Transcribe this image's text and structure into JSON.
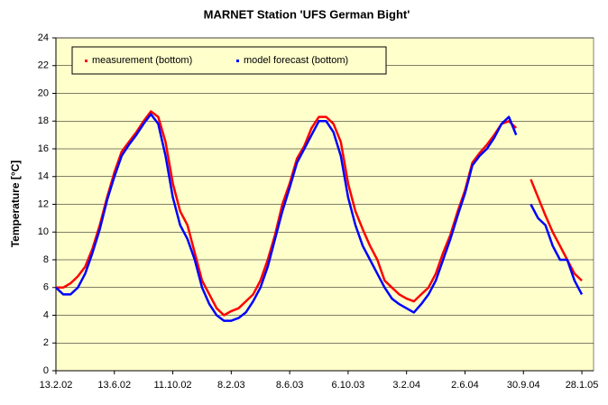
{
  "chart_data": {
    "type": "line",
    "title": "MARNET Station 'UFS German Bight'",
    "y_label": "Temperature  [°C]",
    "xlim": [
      "2002-02-13",
      "2005-02-21"
    ],
    "xticks": [
      {
        "value": "2002-02-13",
        "label": "13.2.02"
      },
      {
        "value": "2002-06-13",
        "label": "13.6.02"
      },
      {
        "value": "2002-10-11",
        "label": "11.10.02"
      },
      {
        "value": "2003-02-08",
        "label": "8.2.03"
      },
      {
        "value": "2003-06-08",
        "label": "8.6.03"
      },
      {
        "value": "2003-10-06",
        "label": "6.10.03"
      },
      {
        "value": "2004-02-03",
        "label": "3.2.04"
      },
      {
        "value": "2004-06-02",
        "label": "2.6.04"
      },
      {
        "value": "2004-09-30",
        "label": "30.9.04"
      },
      {
        "value": "2005-01-28",
        "label": "28.1.05"
      }
    ],
    "ylim": [
      0,
      24
    ],
    "yticks": [
      0,
      2,
      4,
      6,
      8,
      10,
      12,
      14,
      16,
      18,
      20,
      22,
      24
    ],
    "grid": true,
    "legend": "top-left",
    "plot_background": "#ffffcc",
    "x": [
      "2002-02-13",
      "2002-02-28",
      "2002-03-15",
      "2002-03-30",
      "2002-04-14",
      "2002-04-29",
      "2002-05-14",
      "2002-05-29",
      "2002-06-13",
      "2002-06-28",
      "2002-07-13",
      "2002-07-28",
      "2002-08-12",
      "2002-08-27",
      "2002-09-11",
      "2002-09-26",
      "2002-10-11",
      "2002-10-26",
      "2002-11-10",
      "2002-11-25",
      "2002-12-10",
      "2002-12-25",
      "2003-01-09",
      "2003-01-24",
      "2003-02-08",
      "2003-02-23",
      "2003-03-10",
      "2003-03-25",
      "2003-04-09",
      "2003-04-24",
      "2003-05-09",
      "2003-05-24",
      "2003-06-08",
      "2003-06-23",
      "2003-07-08",
      "2003-07-23",
      "2003-08-07",
      "2003-08-22",
      "2003-09-06",
      "2003-09-21",
      "2003-10-06",
      "2003-10-21",
      "2003-11-05",
      "2003-11-20",
      "2003-12-05",
      "2003-12-20",
      "2004-01-04",
      "2004-01-19",
      "2004-02-03",
      "2004-02-18",
      "2004-03-04",
      "2004-03-19",
      "2004-04-03",
      "2004-04-18",
      "2004-05-03",
      "2004-05-18",
      "2004-06-02",
      "2004-06-17",
      "2004-07-02",
      "2004-07-17",
      "2004-08-01",
      "2004-08-16",
      "2004-08-31",
      "2004-09-15",
      "2004-09-30",
      "2004-10-15",
      "2004-10-30",
      "2004-11-14",
      "2004-11-29",
      "2004-12-14",
      "2004-12-29",
      "2005-01-13",
      "2005-01-28",
      "2005-02-12"
    ],
    "series": [
      {
        "name": "measurement (bottom)",
        "color": "#ff0000",
        "values": [
          6.0,
          6.0,
          6.3,
          6.8,
          7.5,
          8.8,
          10.5,
          12.5,
          14.3,
          15.8,
          16.5,
          17.2,
          18.0,
          18.7,
          18.3,
          16.5,
          13.5,
          11.5,
          10.5,
          8.5,
          6.5,
          5.5,
          4.5,
          4.0,
          4.3,
          4.5,
          5.0,
          5.5,
          6.5,
          8.0,
          9.8,
          12.0,
          13.5,
          15.3,
          16.2,
          17.5,
          18.3,
          18.3,
          17.8,
          16.5,
          13.5,
          11.5,
          10.2,
          9.0,
          8.0,
          6.5,
          6.0,
          5.5,
          5.2,
          5.0,
          5.5,
          6.0,
          7.0,
          8.5,
          9.8,
          11.5,
          13.0,
          15.0,
          15.7,
          16.3,
          17.0,
          17.8,
          18.0,
          17.5,
          null,
          13.8,
          12.5,
          11.2,
          10.0,
          9.0,
          8.0,
          7.0,
          6.5,
          null
        ]
      },
      {
        "name": "model forecast (bottom)",
        "color": "#0000ff",
        "values": [
          6.0,
          5.5,
          5.5,
          6.0,
          7.0,
          8.5,
          10.2,
          12.3,
          14.0,
          15.5,
          16.3,
          17.0,
          17.8,
          18.5,
          17.8,
          15.5,
          12.5,
          10.5,
          9.5,
          8.0,
          6.0,
          4.8,
          4.0,
          3.6,
          3.6,
          3.8,
          4.2,
          5.0,
          6.0,
          7.5,
          9.5,
          11.5,
          13.2,
          15.0,
          16.0,
          17.0,
          18.0,
          18.0,
          17.2,
          15.5,
          12.5,
          10.5,
          9.0,
          8.0,
          7.0,
          6.0,
          5.2,
          4.8,
          4.5,
          4.2,
          4.8,
          5.5,
          6.5,
          8.0,
          9.5,
          11.2,
          12.8,
          14.8,
          15.5,
          16.0,
          16.8,
          17.8,
          18.3,
          17.0,
          null,
          12.0,
          11.0,
          10.5,
          9.0,
          8.0,
          8.0,
          6.5,
          5.5,
          null
        ]
      }
    ]
  }
}
